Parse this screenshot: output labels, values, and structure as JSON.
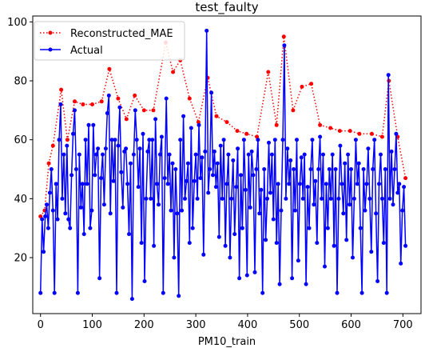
{
  "chart_data": {
    "type": "line",
    "title": "test_faulty",
    "xlabel": "PM10_train",
    "ylabel": "",
    "xlim": [
      -15,
      735
    ],
    "ylim": [
      1,
      102
    ],
    "xticks": [
      0,
      100,
      200,
      300,
      400,
      500,
      600,
      700
    ],
    "yticks": [
      20,
      40,
      60,
      80,
      100
    ],
    "grid": false,
    "legend_position": "top-left",
    "series": [
      {
        "name": "Reconstructed_MAE",
        "color": "#ff0000",
        "line_style": "dotted",
        "marker": "circle",
        "points": [
          [
            0,
            34
          ],
          [
            8,
            36
          ],
          [
            16,
            52
          ],
          [
            24,
            58
          ],
          [
            40,
            77
          ],
          [
            52,
            60
          ],
          [
            66,
            73
          ],
          [
            82,
            72
          ],
          [
            100,
            72
          ],
          [
            118,
            73
          ],
          [
            133,
            84
          ],
          [
            150,
            74
          ],
          [
            166,
            67
          ],
          [
            182,
            75
          ],
          [
            200,
            70
          ],
          [
            218,
            70
          ],
          [
            242,
            93
          ],
          [
            256,
            83
          ],
          [
            270,
            87
          ],
          [
            288,
            74
          ],
          [
            305,
            66
          ],
          [
            323,
            81
          ],
          [
            340,
            68
          ],
          [
            360,
            66
          ],
          [
            380,
            63
          ],
          [
            398,
            62
          ],
          [
            418,
            61
          ],
          [
            440,
            83
          ],
          [
            456,
            65
          ],
          [
            470,
            95
          ],
          [
            488,
            70
          ],
          [
            505,
            78
          ],
          [
            523,
            79
          ],
          [
            540,
            65
          ],
          [
            560,
            64
          ],
          [
            578,
            63
          ],
          [
            598,
            63
          ],
          [
            616,
            62
          ],
          [
            640,
            62
          ],
          [
            660,
            61
          ],
          [
            673,
            80
          ],
          [
            690,
            61
          ],
          [
            705,
            47
          ]
        ]
      },
      {
        "name": "Actual",
        "color": "#0000ff",
        "line_style": "solid",
        "marker": "circle",
        "points": [
          [
            0,
            8
          ],
          [
            3,
            33
          ],
          [
            6,
            22
          ],
          [
            9,
            34
          ],
          [
            12,
            38
          ],
          [
            15,
            30
          ],
          [
            18,
            42
          ],
          [
            21,
            50
          ],
          [
            24,
            36
          ],
          [
            27,
            8
          ],
          [
            30,
            45
          ],
          [
            33,
            33
          ],
          [
            36,
            60
          ],
          [
            39,
            72
          ],
          [
            42,
            40
          ],
          [
            45,
            55
          ],
          [
            48,
            35
          ],
          [
            51,
            58
          ],
          [
            54,
            33
          ],
          [
            57,
            30
          ],
          [
            60,
            48
          ],
          [
            63,
            62
          ],
          [
            66,
            70
          ],
          [
            69,
            50
          ],
          [
            72,
            8
          ],
          [
            75,
            55
          ],
          [
            78,
            37
          ],
          [
            81,
            45
          ],
          [
            84,
            28
          ],
          [
            87,
            60
          ],
          [
            90,
            45
          ],
          [
            93,
            65
          ],
          [
            96,
            30
          ],
          [
            99,
            36
          ],
          [
            102,
            65
          ],
          [
            105,
            48
          ],
          [
            108,
            55
          ],
          [
            111,
            57
          ],
          [
            114,
            13
          ],
          [
            117,
            47
          ],
          [
            120,
            55
          ],
          [
            123,
            38
          ],
          [
            126,
            57
          ],
          [
            129,
            69
          ],
          [
            132,
            75
          ],
          [
            135,
            35
          ],
          [
            138,
            60
          ],
          [
            141,
            46
          ],
          [
            144,
            60
          ],
          [
            147,
            8
          ],
          [
            150,
            58
          ],
          [
            153,
            71
          ],
          [
            156,
            49
          ],
          [
            159,
            37
          ],
          [
            162,
            56
          ],
          [
            165,
            57
          ],
          [
            168,
            45
          ],
          [
            171,
            28
          ],
          [
            174,
            52
          ],
          [
            177,
            6
          ],
          [
            180,
            55
          ],
          [
            183,
            70
          ],
          [
            186,
            60
          ],
          [
            189,
            44
          ],
          [
            192,
            57
          ],
          [
            195,
            25
          ],
          [
            198,
            62
          ],
          [
            201,
            12
          ],
          [
            204,
            40
          ],
          [
            207,
            56
          ],
          [
            210,
            60
          ],
          [
            213,
            40
          ],
          [
            216,
            60
          ],
          [
            219,
            24
          ],
          [
            222,
            67
          ],
          [
            225,
            45
          ],
          [
            228,
            38
          ],
          [
            231,
            55
          ],
          [
            234,
            61
          ],
          [
            237,
            8
          ],
          [
            240,
            47
          ],
          [
            243,
            74
          ],
          [
            246,
            45
          ],
          [
            249,
            55
          ],
          [
            252,
            36
          ],
          [
            255,
            52
          ],
          [
            258,
            20
          ],
          [
            261,
            50
          ],
          [
            264,
            35
          ],
          [
            267,
            7
          ],
          [
            270,
            60
          ],
          [
            273,
            36
          ],
          [
            276,
            68
          ],
          [
            279,
            40
          ],
          [
            282,
            46
          ],
          [
            285,
            52
          ],
          [
            288,
            25
          ],
          [
            291,
            64
          ],
          [
            294,
            30
          ],
          [
            297,
            46
          ],
          [
            300,
            55
          ],
          [
            303,
            40
          ],
          [
            306,
            65
          ],
          [
            309,
            47
          ],
          [
            312,
            54
          ],
          [
            315,
            21
          ],
          [
            318,
            56
          ],
          [
            321,
            97
          ],
          [
            324,
            42
          ],
          [
            327,
            50
          ],
          [
            330,
            76
          ],
          [
            333,
            48
          ],
          [
            336,
            56
          ],
          [
            339,
            44
          ],
          [
            342,
            52
          ],
          [
            345,
            27
          ],
          [
            348,
            58
          ],
          [
            351,
            40
          ],
          [
            354,
            60
          ],
          [
            357,
            24
          ],
          [
            360,
            45
          ],
          [
            363,
            55
          ],
          [
            366,
            20
          ],
          [
            369,
            40
          ],
          [
            372,
            53
          ],
          [
            375,
            28
          ],
          [
            378,
            44
          ],
          [
            381,
            57
          ],
          [
            384,
            13
          ],
          [
            387,
            48
          ],
          [
            390,
            30
          ],
          [
            393,
            60
          ],
          [
            396,
            43
          ],
          [
            399,
            14
          ],
          [
            402,
            55
          ],
          [
            405,
            37
          ],
          [
            408,
            56
          ],
          [
            411,
            48
          ],
          [
            414,
            15
          ],
          [
            417,
            50
          ],
          [
            420,
            60
          ],
          [
            423,
            35
          ],
          [
            426,
            43
          ],
          [
            429,
            8
          ],
          [
            432,
            50
          ],
          [
            435,
            26
          ],
          [
            438,
            40
          ],
          [
            441,
            59
          ],
          [
            444,
            42
          ],
          [
            447,
            55
          ],
          [
            450,
            33
          ],
          [
            453,
            60
          ],
          [
            456,
            25
          ],
          [
            459,
            45
          ],
          [
            462,
            11
          ],
          [
            465,
            36
          ],
          [
            468,
            60
          ],
          [
            471,
            92
          ],
          [
            474,
            40
          ],
          [
            477,
            57
          ],
          [
            480,
            45
          ],
          [
            483,
            53
          ],
          [
            486,
            13
          ],
          [
            489,
            50
          ],
          [
            492,
            36
          ],
          [
            495,
            60
          ],
          [
            498,
            19
          ],
          [
            501,
            45
          ],
          [
            504,
            54
          ],
          [
            507,
            40
          ],
          [
            510,
            55
          ],
          [
            513,
            11
          ],
          [
            516,
            44
          ],
          [
            519,
            30
          ],
          [
            522,
            50
          ],
          [
            525,
            60
          ],
          [
            528,
            38
          ],
          [
            531,
            46
          ],
          [
            534,
            25
          ],
          [
            537,
            50
          ],
          [
            540,
            61
          ],
          [
            543,
            40
          ],
          [
            546,
            55
          ],
          [
            549,
            17
          ],
          [
            552,
            45
          ],
          [
            555,
            30
          ],
          [
            558,
            50
          ],
          [
            561,
            40
          ],
          [
            564,
            55
          ],
          [
            567,
            24
          ],
          [
            570,
            50
          ],
          [
            573,
            8
          ],
          [
            576,
            40
          ],
          [
            579,
            58
          ],
          [
            582,
            45
          ],
          [
            585,
            35
          ],
          [
            588,
            52
          ],
          [
            591,
            26
          ],
          [
            594,
            55
          ],
          [
            597,
            38
          ],
          [
            600,
            50
          ],
          [
            603,
            20
          ],
          [
            606,
            40
          ],
          [
            609,
            60
          ],
          [
            612,
            45
          ],
          [
            615,
            52
          ],
          [
            618,
            30
          ],
          [
            621,
            8
          ],
          [
            624,
            50
          ],
          [
            627,
            36
          ],
          [
            630,
            45
          ],
          [
            633,
            57
          ],
          [
            636,
            40
          ],
          [
            639,
            22
          ],
          [
            642,
            50
          ],
          [
            645,
            60
          ],
          [
            648,
            35
          ],
          [
            651,
            12
          ],
          [
            654,
            45
          ],
          [
            657,
            55
          ],
          [
            660,
            40
          ],
          [
            663,
            25
          ],
          [
            666,
            50
          ],
          [
            669,
            8
          ],
          [
            672,
            82
          ],
          [
            675,
            40
          ],
          [
            678,
            56
          ],
          [
            681,
            38
          ],
          [
            684,
            50
          ],
          [
            687,
            62
          ],
          [
            690,
            42
          ],
          [
            693,
            45
          ],
          [
            696,
            18
          ],
          [
            699,
            36
          ],
          [
            702,
            44
          ],
          [
            705,
            24
          ]
        ]
      }
    ]
  }
}
